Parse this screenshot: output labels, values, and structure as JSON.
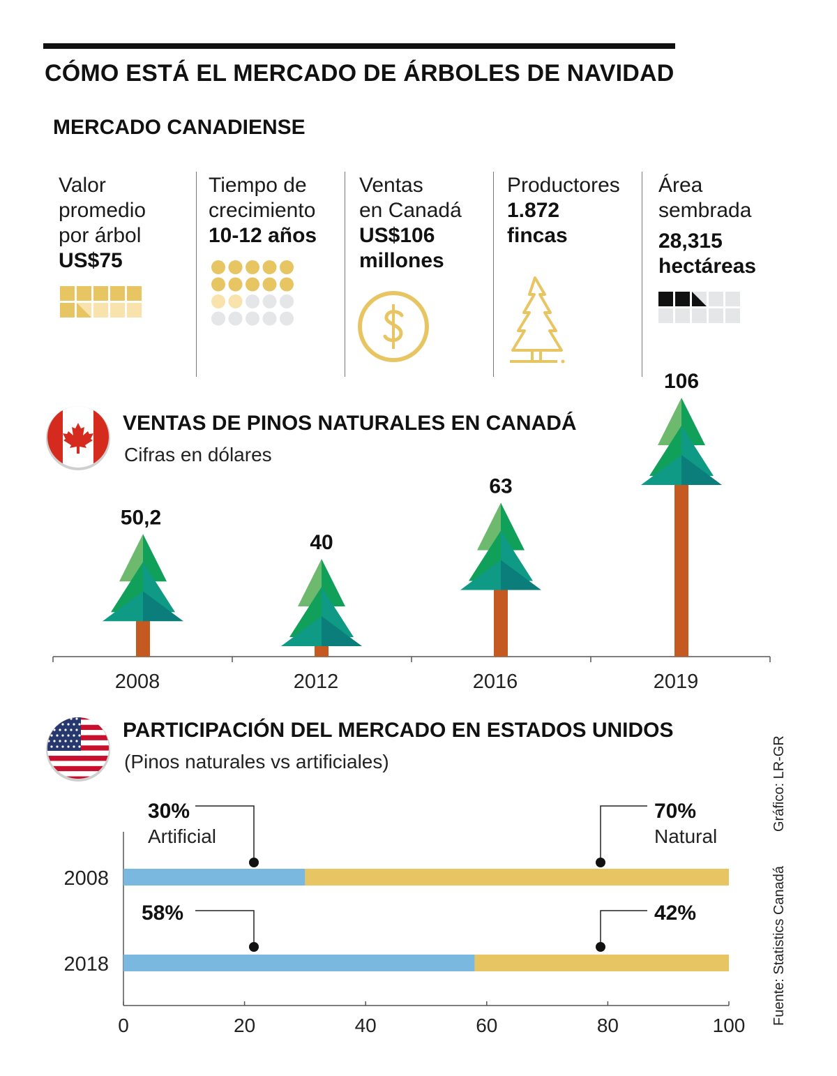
{
  "header": {
    "title": "CÓMO ESTÁ EL MERCADO DE ÁRBOLES DE NAVIDAD",
    "subtitle": "MERCADO CANADIENSE"
  },
  "stats": {
    "valor": {
      "label": [
        "Valor",
        "promedio",
        "por árbol"
      ],
      "value": [
        "US$75"
      ]
    },
    "tiempo": {
      "label": [
        "Tiempo de",
        "crecimiento"
      ],
      "value": [
        "10-12 años"
      ]
    },
    "ventas": {
      "label": [
        "Ventas",
        "en Canadá"
      ],
      "value": [
        "US$106",
        "millones"
      ]
    },
    "productores": {
      "label": [
        "Productores"
      ],
      "value": [
        "1.872",
        "fincas"
      ]
    },
    "area": {
      "label": [
        "Área",
        "sembrada"
      ],
      "value": [
        "28,315",
        "hectáreas"
      ]
    }
  },
  "colors": {
    "gold": "#e8c563",
    "gold_light": "#f8e3ad",
    "grey_light": "#e5e6e8",
    "black": "#111111",
    "trunk": "#c45a22",
    "tree_light": "#6db96e",
    "tree_mid": "#10a05a",
    "tree_teal": "#0f9a86",
    "tree_dark": "#0b7d7a",
    "artificial": "#7ab8e0",
    "natural": "#e8c563",
    "canada_red": "#d52b1e",
    "usa_blue": "#27386f"
  },
  "canada_chart": {
    "title": "VENTAS DE PINOS NATURALES EN CANADÁ",
    "subtitle": "Cifras en dólares"
  },
  "usa_chart": {
    "title": "PARTICIPACIÓN DEL MERCADO EN ESTADOS UNIDOS",
    "subtitle": "(Pinos naturales vs artificiales)",
    "annotations": {
      "artificial_2008_pct": "30%",
      "artificial_2008_label": "Artificial",
      "natural_2008_pct": "70%",
      "natural_2008_label": "Natural",
      "artificial_2018_pct": "58%",
      "natural_2018_pct": "42%"
    }
  },
  "credits": {
    "grafico": "Gráfico: LR-GR",
    "fuente": "Fuente: Statistics Canadá"
  },
  "chart_data": [
    {
      "type": "bar",
      "title": "VENTAS DE PINOS NATURALES EN CANADÁ",
      "subtitle": "Cifras en dólares",
      "categories": [
        "2008",
        "2012",
        "2016",
        "2019"
      ],
      "values": [
        50.2,
        40,
        63,
        106
      ],
      "value_labels": [
        "50,2",
        "40",
        "63",
        "106"
      ],
      "xlabel": "",
      "ylabel": ""
    },
    {
      "type": "bar",
      "orientation": "horizontal",
      "stacked": true,
      "title": "PARTICIPACIÓN DEL MERCADO EN ESTADOS UNIDOS",
      "subtitle": "(Pinos naturales vs artificiales)",
      "categories": [
        "2008",
        "2018"
      ],
      "series": [
        {
          "name": "Artificial",
          "values": [
            30,
            58
          ],
          "color": "#7ab8e0"
        },
        {
          "name": "Natural",
          "values": [
            70,
            42
          ],
          "color": "#e8c563"
        }
      ],
      "xlim": [
        0,
        100
      ],
      "xticks": [
        "0",
        "20",
        "40",
        "60",
        "80",
        "100"
      ]
    }
  ]
}
